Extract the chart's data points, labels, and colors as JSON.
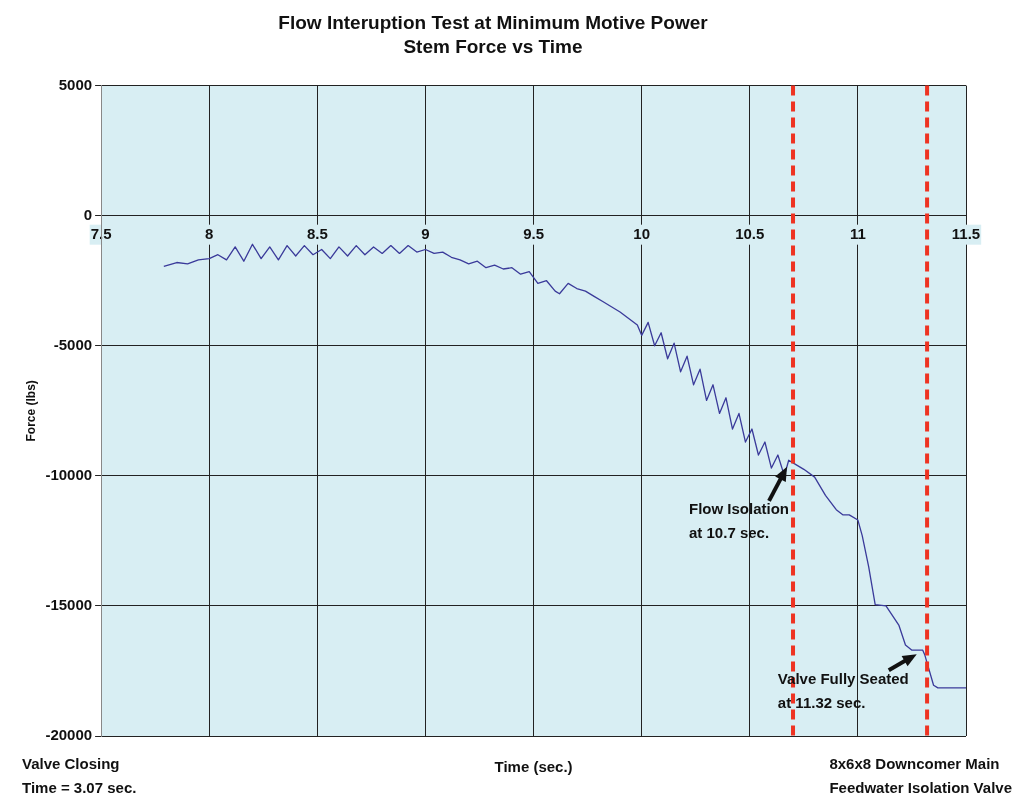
{
  "chart_data": {
    "type": "line",
    "title": "Flow Interuption Test at Minimum Motive Power",
    "subtitle": "Stem Force vs Time",
    "xlabel": "Time (sec.)",
    "ylabel": "Force (lbs)",
    "xlim": [
      7.5,
      11.5
    ],
    "xticks": [
      7.5,
      8,
      8.5,
      9,
      9.5,
      10,
      10.5,
      11,
      11.5
    ],
    "ylim": [
      -20000,
      5000
    ],
    "yticks": [
      -20000,
      -15000,
      -10000,
      -5000,
      0,
      5000
    ],
    "grid": true,
    "marker": "none",
    "line_style": "solid",
    "x": [
      7.79,
      7.85,
      7.9,
      7.95,
      8.0,
      8.04,
      8.08,
      8.12,
      8.16,
      8.2,
      8.24,
      8.28,
      8.32,
      8.36,
      8.4,
      8.44,
      8.48,
      8.52,
      8.56,
      8.6,
      8.64,
      8.68,
      8.72,
      8.76,
      8.8,
      8.84,
      8.88,
      8.92,
      8.96,
      9.0,
      9.04,
      9.08,
      9.12,
      9.16,
      9.2,
      9.24,
      9.28,
      9.32,
      9.36,
      9.4,
      9.44,
      9.48,
      9.52,
      9.56,
      9.6,
      9.62,
      9.66,
      9.7,
      9.74,
      9.78,
      9.82,
      9.86,
      9.9,
      9.94,
      9.98,
      10.0,
      10.03,
      10.06,
      10.09,
      10.12,
      10.15,
      10.18,
      10.21,
      10.24,
      10.27,
      10.3,
      10.33,
      10.36,
      10.39,
      10.42,
      10.45,
      10.48,
      10.51,
      10.54,
      10.57,
      10.6,
      10.63,
      10.66,
      10.68,
      10.7,
      10.75,
      10.8,
      10.85,
      10.9,
      10.93,
      10.96,
      11.0,
      11.02,
      11.05,
      11.08,
      11.13,
      11.19,
      11.22,
      11.25,
      11.3,
      11.31,
      11.35,
      11.37,
      11.5
    ],
    "series": [
      {
        "color": "#3a3a9a",
        "values": [
          -1950,
          -1800,
          -1850,
          -1700,
          -1650,
          -1500,
          -1700,
          -1200,
          -1750,
          -1100,
          -1650,
          -1200,
          -1700,
          -1150,
          -1550,
          -1150,
          -1500,
          -1300,
          -1650,
          -1200,
          -1550,
          -1150,
          -1500,
          -1200,
          -1450,
          -1150,
          -1450,
          -1150,
          -1400,
          -1300,
          -1450,
          -1400,
          -1600,
          -1700,
          -1850,
          -1750,
          -2000,
          -1900,
          -2050,
          -2000,
          -2250,
          -2150,
          -2600,
          -2500,
          -2900,
          -3000,
          -2600,
          -2800,
          -2900,
          -3100,
          -3300,
          -3500,
          -3700,
          -3950,
          -4200,
          -4600,
          -4100,
          -5000,
          -4500,
          -5500,
          -4900,
          -6000,
          -5400,
          -6500,
          -5900,
          -7100,
          -6500,
          -7600,
          -7000,
          -8200,
          -7600,
          -8700,
          -8200,
          -9200,
          -8700,
          -9700,
          -9200,
          -10000,
          -9400,
          -9500,
          -9750,
          -10050,
          -10750,
          -11300,
          -11500,
          -11500,
          -11700,
          -12300,
          -13500,
          -14950,
          -15000,
          -15750,
          -16500,
          -16700,
          -16700,
          -16900,
          -18050,
          -18150,
          -18150
        ]
      }
    ],
    "ref_lines": [
      {
        "axis": "x",
        "value": 10.7,
        "color": "#ee3322",
        "line_style": "dashed"
      },
      {
        "axis": "x",
        "value": 11.32,
        "color": "#ee3322",
        "line_style": "dashed"
      }
    ],
    "annotations": [
      {
        "text": "Flow Isolation\nat 10.7 sec.",
        "x": 10.7,
        "y": -9500
      },
      {
        "text": "Valve Fully Seated\nat 11.32 sec.",
        "x": 11.3,
        "y": -16700
      },
      "Valve Closing\nTime = 3.07 sec.",
      "8x6x8 Downcomer Main\nFeedwater Isolation Valve"
    ]
  }
}
